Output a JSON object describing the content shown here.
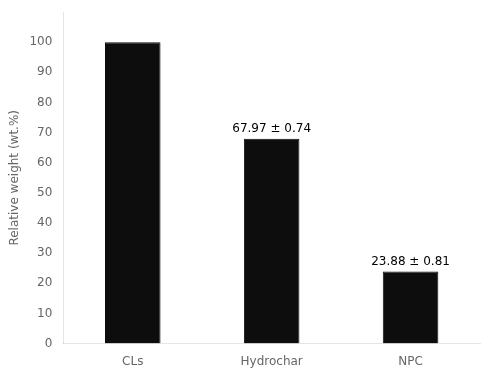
{
  "chart_data": {
    "type": "bar",
    "ylabel": "Relative weight (wt.%)",
    "categories": [
      "CLs",
      "Hydrochar",
      "NPC"
    ],
    "values": [
      100,
      67.97,
      23.88
    ],
    "color": "#0d0d0d",
    "annotations": [
      {
        "category": "Hydrochar",
        "text": "67.97 ± 0.74"
      },
      {
        "category": "NPC",
        "text": "23.88 ± 0.81"
      }
    ],
    "ylim": [
      0,
      110
    ],
    "yticks": [
      0,
      10,
      20,
      30,
      40,
      50,
      60,
      70,
      80,
      90,
      100
    ],
    "grid": false
  }
}
